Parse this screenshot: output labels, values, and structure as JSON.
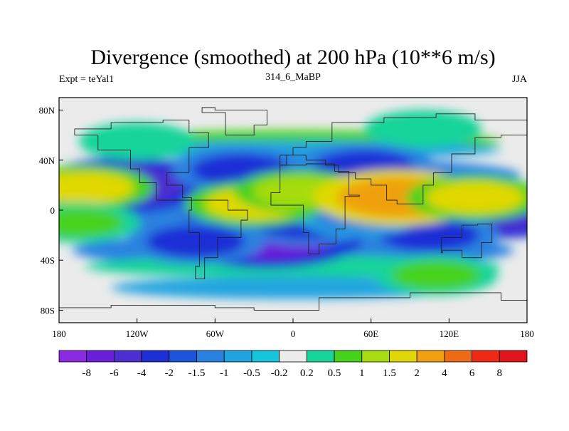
{
  "chart_data": {
    "type": "heatmap",
    "title": "Divergence (smoothed) at 200 hPa (10**6 m/s)",
    "subtitle_left": "Expt = teYal1",
    "subtitle_center": "314_6_MaBP",
    "subtitle_right": "JJA",
    "x_ticks": [
      "180",
      "120W",
      "60W",
      "0",
      "60E",
      "120E",
      "180"
    ],
    "x_tick_values": [
      -180,
      -120,
      -60,
      0,
      60,
      120,
      180
    ],
    "y_ticks": [
      "80N",
      "40N",
      "0",
      "40S",
      "80S"
    ],
    "y_tick_values": [
      80,
      40,
      0,
      -40,
      -80
    ],
    "xlim": [
      -180,
      180
    ],
    "ylim": [
      -90,
      90
    ],
    "colorbar": {
      "levels": [
        "-8",
        "-6",
        "-4",
        "-2",
        "-1.5",
        "-1",
        "-0.5",
        "-0.2",
        "0.2",
        "0.5",
        "1",
        "1.5",
        "2",
        "4",
        "6",
        "8"
      ],
      "colors": [
        "#8a2be2",
        "#6a1fd8",
        "#4b2fd0",
        "#1f2fd6",
        "#1e54dc",
        "#2a82e0",
        "#20a4e0",
        "#16c4dc",
        "#ebebeb",
        "#18d49a",
        "#46d21c",
        "#a6dc10",
        "#e0d806",
        "#f0a010",
        "#ee6a14",
        "#ee2a14",
        "#e0141a"
      ]
    },
    "fields": {
      "negative_regions": [
        {
          "lon": -130,
          "lat": 20,
          "value": -4
        },
        {
          "lon": -40,
          "lat": 32,
          "value": -2
        },
        {
          "lon": -20,
          "lat": -20,
          "value": -6
        },
        {
          "lon": -75,
          "lat": -25,
          "value": -2
        },
        {
          "lon": 10,
          "lat": -10,
          "value": -2
        },
        {
          "lon": 55,
          "lat": 35,
          "value": -2
        },
        {
          "lon": 160,
          "lat": 0,
          "value": -4
        },
        {
          "lon": 105,
          "lat": -20,
          "value": -2
        },
        {
          "lon": 50,
          "lat": -5,
          "value": -1
        }
      ],
      "positive_regions": [
        {
          "lon": -160,
          "lat": 18,
          "value": 2
        },
        {
          "lon": -30,
          "lat": 5,
          "value": 2
        },
        {
          "lon": 5,
          "lat": 15,
          "value": 1.5
        },
        {
          "lon": 80,
          "lat": 10,
          "value": 4
        },
        {
          "lon": 140,
          "lat": 10,
          "value": 2
        },
        {
          "lon": -165,
          "lat": -10,
          "value": 1
        },
        {
          "lon": 110,
          "lat": -52,
          "value": 1
        },
        {
          "lon": 100,
          "lat": 65,
          "value": 0.5
        },
        {
          "lon": -120,
          "lat": 55,
          "value": 0.5
        }
      ]
    }
  }
}
